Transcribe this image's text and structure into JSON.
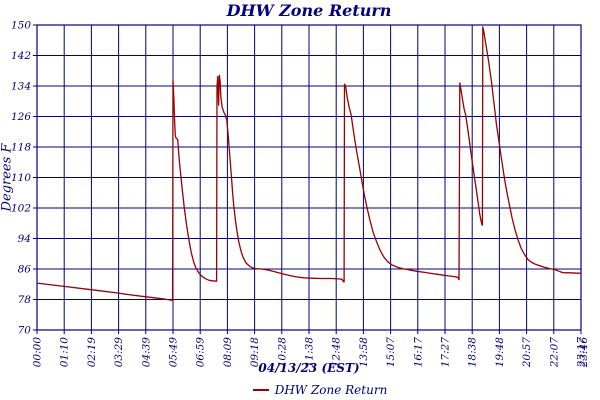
{
  "colors": {
    "navy": "#000080",
    "line": "#990000",
    "background": "#ffffff"
  },
  "chart_data": {
    "type": "line",
    "title": "DHW Zone Return",
    "xlabel": "04/13/23 (EST)",
    "ylabel": "Degrees F",
    "legend_label": "DHW Zone Return",
    "legend_position": "bottom-center",
    "grid": true,
    "ylim": [
      70,
      150
    ],
    "y_ticks": [
      150,
      142,
      134,
      126,
      118,
      110,
      102,
      94,
      86,
      78,
      70
    ],
    "x_tick_labels": [
      "00:00",
      "01:10",
      "02:19",
      "03:29",
      "04:39",
      "05:49",
      "06:59",
      "08:09",
      "09:18",
      "10:28",
      "11:38",
      "12:48",
      "13:58",
      "15:07",
      "16:17",
      "17:27",
      "18:38",
      "19:48",
      "20:57",
      "22:07",
      "23:17"
    ],
    "x_overlap_label": "23:46",
    "x_domain_minutes": [
      0,
      1396
    ],
    "series": [
      {
        "name": "DHW Zone Return",
        "color": "#990000",
        "points": [
          [
            0,
            82.3
          ],
          [
            40,
            81.8
          ],
          [
            80,
            81.3
          ],
          [
            120,
            80.8
          ],
          [
            160,
            80.3
          ],
          [
            200,
            79.8
          ],
          [
            240,
            79.2
          ],
          [
            280,
            78.7
          ],
          [
            320,
            78.2
          ],
          [
            340,
            77.9
          ],
          [
            348,
            77.8
          ],
          [
            349,
            135.5
          ],
          [
            351,
            131
          ],
          [
            353,
            125
          ],
          [
            355,
            121
          ],
          [
            357,
            120.3
          ],
          [
            361,
            120
          ],
          [
            364,
            116
          ],
          [
            368,
            111.5
          ],
          [
            373,
            106.5
          ],
          [
            378,
            102
          ],
          [
            384,
            97.5
          ],
          [
            390,
            93.5
          ],
          [
            396,
            90.3
          ],
          [
            402,
            87.8
          ],
          [
            408,
            86.2
          ],
          [
            414,
            85.2
          ],
          [
            421,
            84.3
          ],
          [
            430,
            83.6
          ],
          [
            440,
            83.1
          ],
          [
            450,
            82.9
          ],
          [
            461,
            82.8
          ],
          [
            462,
            134
          ],
          [
            464,
            136.5
          ],
          [
            466,
            129
          ],
          [
            468,
            136.8
          ],
          [
            470,
            135
          ],
          [
            472,
            131
          ],
          [
            475,
            128.5
          ],
          [
            480,
            127
          ],
          [
            483,
            126.5
          ],
          [
            487,
            125
          ],
          [
            490,
            122
          ],
          [
            493,
            118
          ],
          [
            496,
            114
          ],
          [
            499,
            110
          ],
          [
            502,
            106
          ],
          [
            505,
            102.5
          ],
          [
            509,
            99
          ],
          [
            513,
            96
          ],
          [
            518,
            93
          ],
          [
            524,
            90.5
          ],
          [
            530,
            88.8
          ],
          [
            537,
            87.5
          ],
          [
            545,
            86.8
          ],
          [
            553,
            86.3
          ],
          [
            562,
            86.1
          ],
          [
            575,
            86.0
          ],
          [
            590,
            85.8
          ],
          [
            605,
            85.4
          ],
          [
            620,
            85.0
          ],
          [
            635,
            84.6
          ],
          [
            652,
            84.2
          ],
          [
            668,
            83.9
          ],
          [
            685,
            83.7
          ],
          [
            705,
            83.6
          ],
          [
            730,
            83.5
          ],
          [
            755,
            83.5
          ],
          [
            775,
            83.4
          ],
          [
            783,
            83.3
          ],
          [
            786,
            82.7
          ],
          [
            788,
            82.6
          ],
          [
            789,
            134.5
          ],
          [
            792,
            134
          ],
          [
            796,
            131
          ],
          [
            801,
            128.5
          ],
          [
            806,
            126.5
          ],
          [
            811,
            123
          ],
          [
            816,
            119.5
          ],
          [
            821,
            116.5
          ],
          [
            827,
            113
          ],
          [
            833,
            109.5
          ],
          [
            840,
            105.5
          ],
          [
            847,
            102
          ],
          [
            855,
            98.5
          ],
          [
            863,
            95.5
          ],
          [
            872,
            93
          ],
          [
            881,
            90.8
          ],
          [
            891,
            89
          ],
          [
            901,
            87.8
          ],
          [
            912,
            87
          ],
          [
            924,
            86.5
          ],
          [
            938,
            86.1
          ],
          [
            955,
            85.8
          ],
          [
            975,
            85.4
          ],
          [
            995,
            85.1
          ],
          [
            1015,
            84.8
          ],
          [
            1035,
            84.5
          ],
          [
            1055,
            84.2
          ],
          [
            1072,
            84.0
          ],
          [
            1080,
            83.8
          ],
          [
            1083,
            83.2
          ],
          [
            1085,
            134.8
          ],
          [
            1088,
            133
          ],
          [
            1092,
            130.5
          ],
          [
            1096,
            128
          ],
          [
            1100,
            126.3
          ],
          [
            1105,
            123
          ],
          [
            1109,
            120
          ],
          [
            1113,
            117
          ],
          [
            1117,
            114
          ],
          [
            1122,
            110.5
          ],
          [
            1127,
            107
          ],
          [
            1132,
            103.5
          ],
          [
            1136,
            100.5
          ],
          [
            1139,
            98.8
          ],
          [
            1142,
            97.6
          ],
          [
            1143,
            97.5
          ],
          [
            1144,
            149.5
          ],
          [
            1147,
            148
          ],
          [
            1151,
            145.5
          ],
          [
            1155,
            143
          ],
          [
            1159,
            140.5
          ],
          [
            1163,
            137.5
          ],
          [
            1167,
            134.5
          ],
          [
            1171,
            131
          ],
          [
            1175,
            127.5
          ],
          [
            1179,
            124
          ],
          [
            1184,
            120.5
          ],
          [
            1189,
            117
          ],
          [
            1194,
            113.5
          ],
          [
            1200,
            109.5
          ],
          [
            1206,
            106
          ],
          [
            1212,
            103
          ],
          [
            1219,
            99.5
          ],
          [
            1226,
            96.5
          ],
          [
            1234,
            93.8
          ],
          [
            1242,
            91.5
          ],
          [
            1251,
            89.8
          ],
          [
            1260,
            88.5
          ],
          [
            1270,
            87.7
          ],
          [
            1280,
            87.2
          ],
          [
            1292,
            86.8
          ],
          [
            1304,
            86.4
          ],
          [
            1316,
            86.1
          ],
          [
            1330,
            85.8
          ],
          [
            1340,
            85.4
          ],
          [
            1347,
            85.1
          ],
          [
            1355,
            85.0
          ],
          [
            1370,
            85.0
          ],
          [
            1385,
            84.9
          ],
          [
            1396,
            84.9
          ]
        ]
      }
    ]
  }
}
